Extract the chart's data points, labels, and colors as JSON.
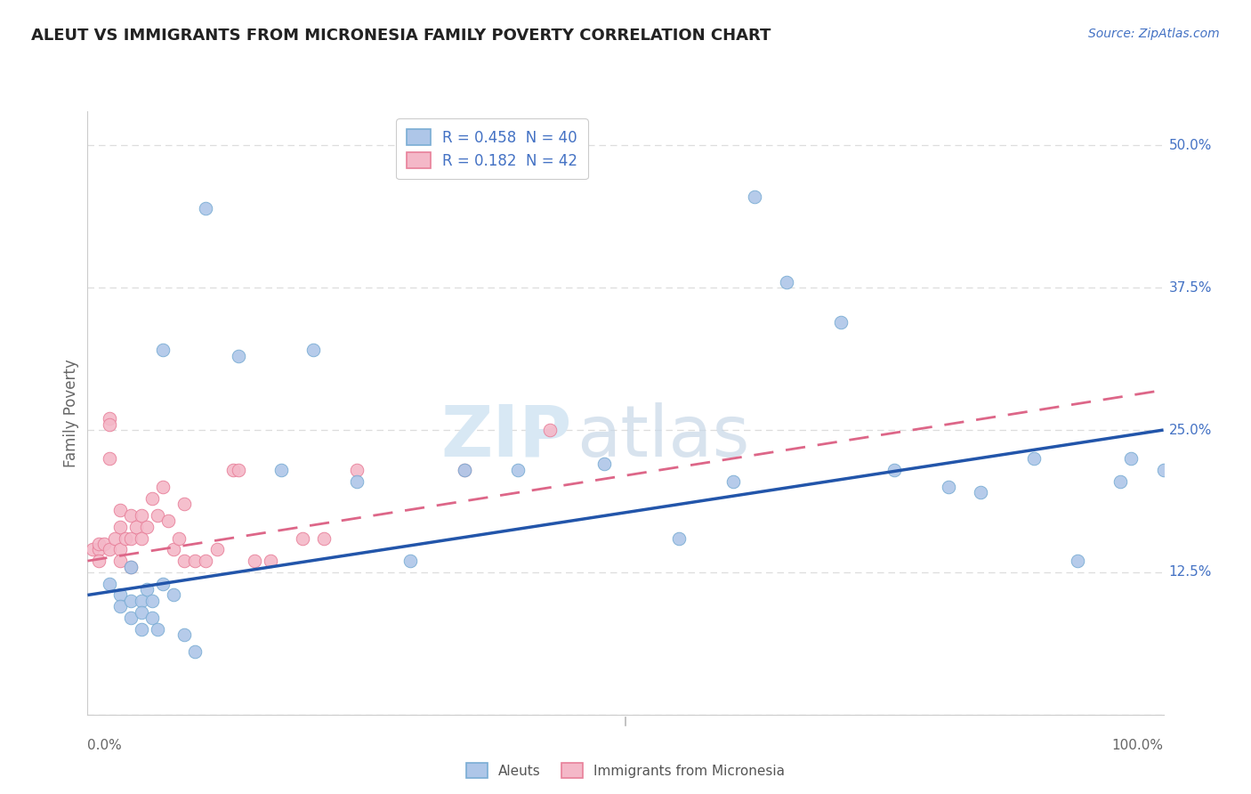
{
  "title": "ALEUT VS IMMIGRANTS FROM MICRONESIA FAMILY POVERTY CORRELATION CHART",
  "source": "Source: ZipAtlas.com",
  "ylabel": "Family Poverty",
  "xlim": [
    0.0,
    1.0
  ],
  "ylim": [
    0.0,
    0.53
  ],
  "legend_r1": "R = 0.458",
  "legend_n1": "N = 40",
  "legend_r2": "R = 0.182",
  "legend_n2": "N = 42",
  "blue_dot_face": "#aec6e8",
  "blue_dot_edge": "#7aadd4",
  "pink_dot_face": "#f4b8c8",
  "pink_dot_edge": "#e8809a",
  "line_blue": "#2255aa",
  "line_pink": "#dd6688",
  "watermark_color": "#d8e8f4",
  "title_color": "#222222",
  "source_color": "#4472c4",
  "axis_label_color": "#666666",
  "ytick_color": "#4472c4",
  "grid_color": "#dddddd",
  "aleut_x": [
    0.02,
    0.03,
    0.03,
    0.04,
    0.04,
    0.04,
    0.05,
    0.05,
    0.05,
    0.055,
    0.06,
    0.06,
    0.065,
    0.07,
    0.07,
    0.08,
    0.09,
    0.1,
    0.11,
    0.14,
    0.18,
    0.21,
    0.25,
    0.3,
    0.35,
    0.4,
    0.48,
    0.55,
    0.6,
    0.62,
    0.65,
    0.7,
    0.75,
    0.8,
    0.83,
    0.88,
    0.92,
    0.96,
    0.97,
    1.0
  ],
  "aleut_y": [
    0.115,
    0.105,
    0.095,
    0.13,
    0.1,
    0.085,
    0.1,
    0.09,
    0.075,
    0.11,
    0.1,
    0.085,
    0.075,
    0.115,
    0.32,
    0.105,
    0.07,
    0.055,
    0.445,
    0.315,
    0.215,
    0.32,
    0.205,
    0.135,
    0.215,
    0.215,
    0.22,
    0.155,
    0.205,
    0.455,
    0.38,
    0.345,
    0.215,
    0.2,
    0.195,
    0.225,
    0.135,
    0.205,
    0.225,
    0.215
  ],
  "micro_x": [
    0.005,
    0.01,
    0.01,
    0.01,
    0.015,
    0.02,
    0.02,
    0.02,
    0.02,
    0.025,
    0.03,
    0.03,
    0.03,
    0.03,
    0.035,
    0.04,
    0.04,
    0.04,
    0.045,
    0.05,
    0.05,
    0.055,
    0.06,
    0.065,
    0.07,
    0.075,
    0.08,
    0.085,
    0.09,
    0.09,
    0.1,
    0.11,
    0.12,
    0.135,
    0.14,
    0.155,
    0.17,
    0.2,
    0.22,
    0.25,
    0.35,
    0.43
  ],
  "micro_y": [
    0.145,
    0.145,
    0.135,
    0.15,
    0.15,
    0.26,
    0.255,
    0.225,
    0.145,
    0.155,
    0.165,
    0.145,
    0.135,
    0.18,
    0.155,
    0.175,
    0.155,
    0.13,
    0.165,
    0.175,
    0.155,
    0.165,
    0.19,
    0.175,
    0.2,
    0.17,
    0.145,
    0.155,
    0.185,
    0.135,
    0.135,
    0.135,
    0.145,
    0.215,
    0.215,
    0.135,
    0.135,
    0.155,
    0.155,
    0.215,
    0.215,
    0.25
  ],
  "blue_line_x": [
    0.0,
    1.0
  ],
  "blue_line_y": [
    0.105,
    0.25
  ],
  "pink_line_x": [
    0.0,
    1.0
  ],
  "pink_line_y": [
    0.135,
    0.285
  ]
}
